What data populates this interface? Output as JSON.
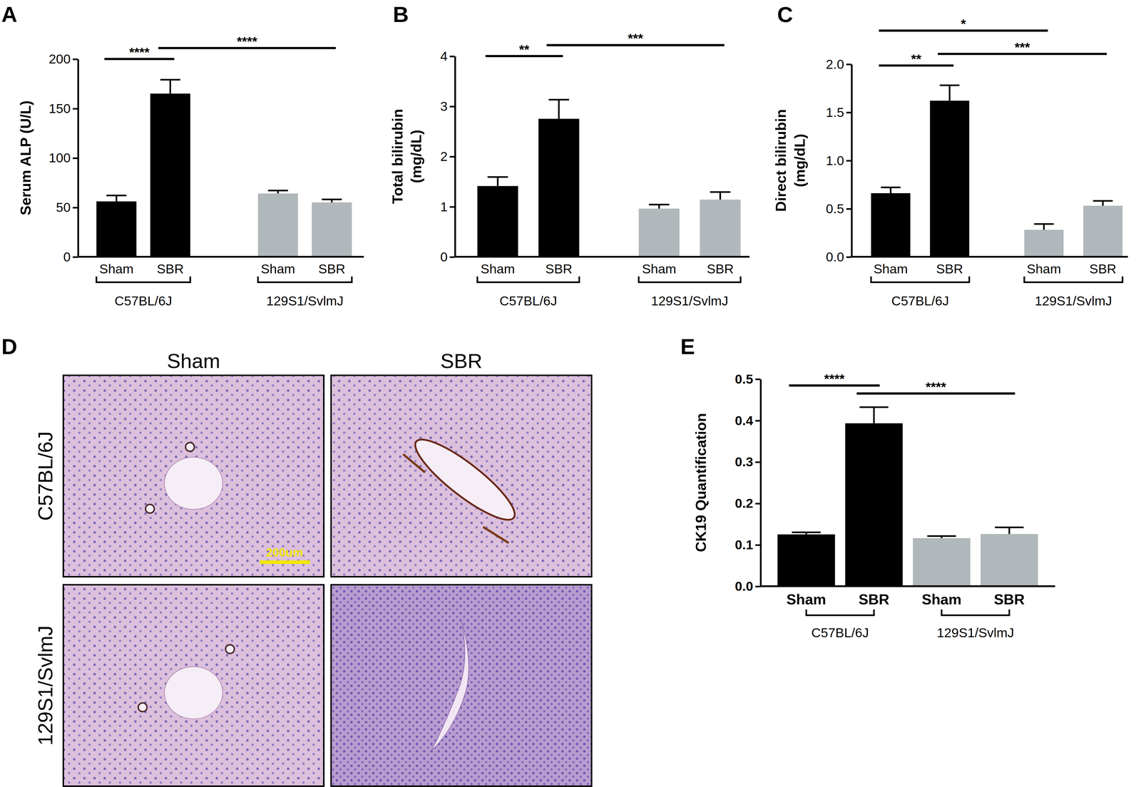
{
  "chart_data": [
    {
      "panel": "A",
      "type": "bar",
      "y_label": [
        "Serum ALP (U/L)"
      ],
      "categories": [
        "Sham",
        "SBR",
        "Sham",
        "SBR"
      ],
      "category_groups": [
        "C57BL/6J",
        "C57BL/6J",
        "129S1/SvlmJ",
        "129S1/SvlmJ"
      ],
      "values": [
        56,
        165,
        64,
        55
      ],
      "errors": [
        6,
        14,
        3,
        3
      ],
      "colors": [
        "#000000",
        "#000000",
        "#b1b8bb",
        "#b1b8bb"
      ],
      "ylim": [
        0,
        200
      ],
      "yticks": [
        0,
        50,
        100,
        150,
        200
      ],
      "annotations": [
        {
          "text": "****",
          "from": 0,
          "to": 1
        },
        {
          "text": "****",
          "from": 1,
          "to": 3
        }
      ]
    },
    {
      "panel": "B",
      "type": "bar",
      "y_label": [
        "Total bilirubin",
        "(mg/dL)"
      ],
      "categories": [
        "Sham",
        "SBR",
        "Sham",
        "SBR"
      ],
      "category_groups": [
        "C57BL/6J",
        "C57BL/6J",
        "129S1/SvlmJ",
        "129S1/SvlmJ"
      ],
      "values": [
        1.41,
        2.75,
        0.96,
        1.14
      ],
      "errors": [
        0.18,
        0.38,
        0.08,
        0.15
      ],
      "colors": [
        "#000000",
        "#000000",
        "#b1b8bb",
        "#b1b8bb"
      ],
      "ylim": [
        0,
        4
      ],
      "yticks": [
        0,
        1,
        2,
        3,
        4
      ],
      "annotations": [
        {
          "text": "**",
          "from": 0,
          "to": 1
        },
        {
          "text": "***",
          "from": 1,
          "to": 3
        }
      ]
    },
    {
      "panel": "C",
      "type": "bar",
      "y_label": [
        "Direct bilirubin",
        "(mg/dL)"
      ],
      "categories": [
        "Sham",
        "SBR",
        "Sham",
        "SBR"
      ],
      "category_groups": [
        "C57BL/6J",
        "C57BL/6J",
        "129S1/SvlmJ",
        "129S1/SvlmJ"
      ],
      "values": [
        0.66,
        1.62,
        0.28,
        0.53
      ],
      "errors": [
        0.06,
        0.16,
        0.06,
        0.05
      ],
      "colors": [
        "#000000",
        "#000000",
        "#b1b8bb",
        "#b1b8bb"
      ],
      "ylim": [
        0,
        2
      ],
      "yticks": [
        {
          "value": 0,
          "label": "0.0"
        },
        0.5,
        {
          "value": 1,
          "label": "1.0"
        },
        1.5,
        {
          "value": 2,
          "label": "2.0"
        }
      ],
      "annotations": [
        {
          "text": "*",
          "from": 0,
          "to": 2
        },
        {
          "text": "**",
          "from": 0,
          "to": 1
        },
        {
          "text": "***",
          "from": 1,
          "to": 3
        }
      ]
    },
    {
      "panel": "E",
      "type": "bar",
      "y_label": [
        "CK19 Quantification"
      ],
      "categories": [
        "Sham",
        "SBR",
        "Sham",
        "SBR"
      ],
      "category_groups": [
        "C57BL/6J",
        "C57BL/6J",
        "129S1/SvlmJ",
        "129S1/SvlmJ"
      ],
      "values": [
        0.125,
        0.393,
        0.116,
        0.126
      ],
      "errors": [
        0.005,
        0.039,
        0.005,
        0.016
      ],
      "colors": [
        "#000000",
        "#000000",
        "#b1b8bb",
        "#b1b8bb"
      ],
      "ylim": [
        0,
        0.5
      ],
      "yticks": [
        {
          "value": 0,
          "label": "0.0"
        },
        0.1,
        0.2,
        0.3,
        0.4,
        0.5
      ],
      "annotations": [
        {
          "text": "****",
          "from": 0,
          "to": 1
        },
        {
          "text": "****",
          "from": 1,
          "to": 3
        }
      ]
    }
  ],
  "panel_d": {
    "panel": "D",
    "columns": [
      "Sham",
      "SBR"
    ],
    "rows": [
      "C57BL/6J",
      "129S1/SvlmJ"
    ],
    "scale_bar": "200um"
  }
}
